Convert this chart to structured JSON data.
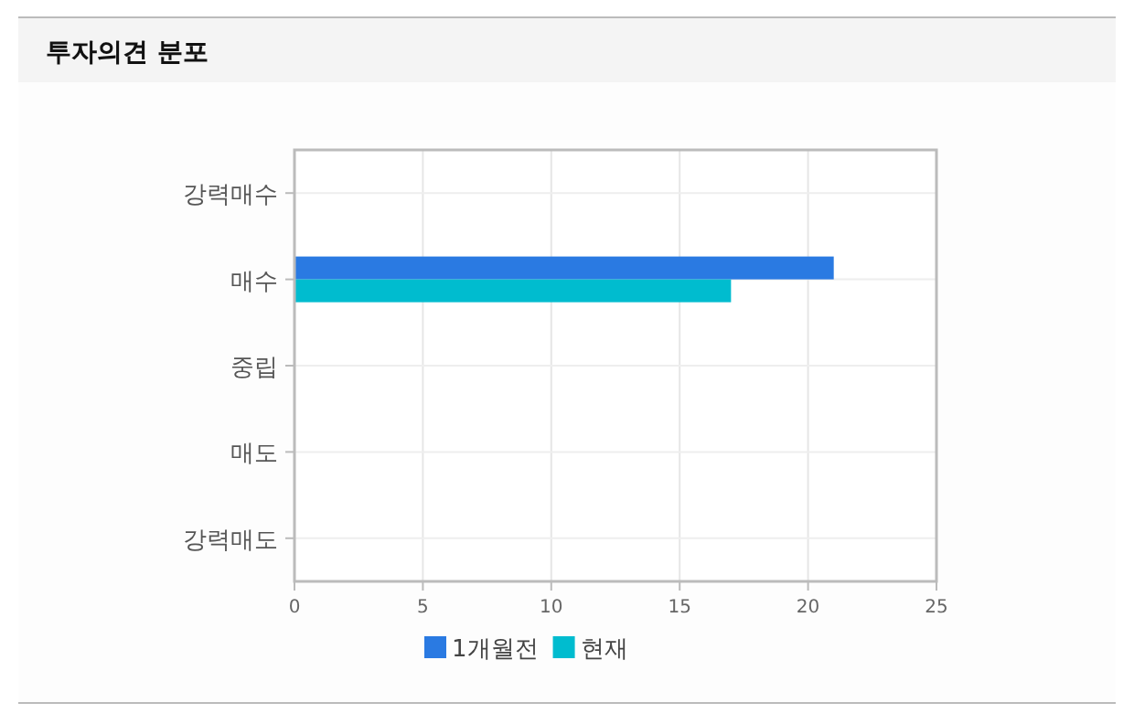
{
  "chart_data": {
    "type": "bar",
    "orientation": "horizontal",
    "title": "투자의견 분포",
    "categories": [
      "강력매수",
      "매수",
      "중립",
      "매도",
      "강력매도"
    ],
    "series": [
      {
        "name": "1개월전",
        "color": "#2a7ae2",
        "values": [
          0,
          21,
          0,
          0,
          0
        ]
      },
      {
        "name": "현재",
        "color": "#00bccf",
        "values": [
          0,
          17,
          0,
          0,
          0
        ]
      }
    ],
    "xlim": [
      0,
      25
    ],
    "xticks": [
      0,
      5,
      10,
      15,
      20,
      25
    ],
    "grid": true,
    "legend": "bottom"
  }
}
